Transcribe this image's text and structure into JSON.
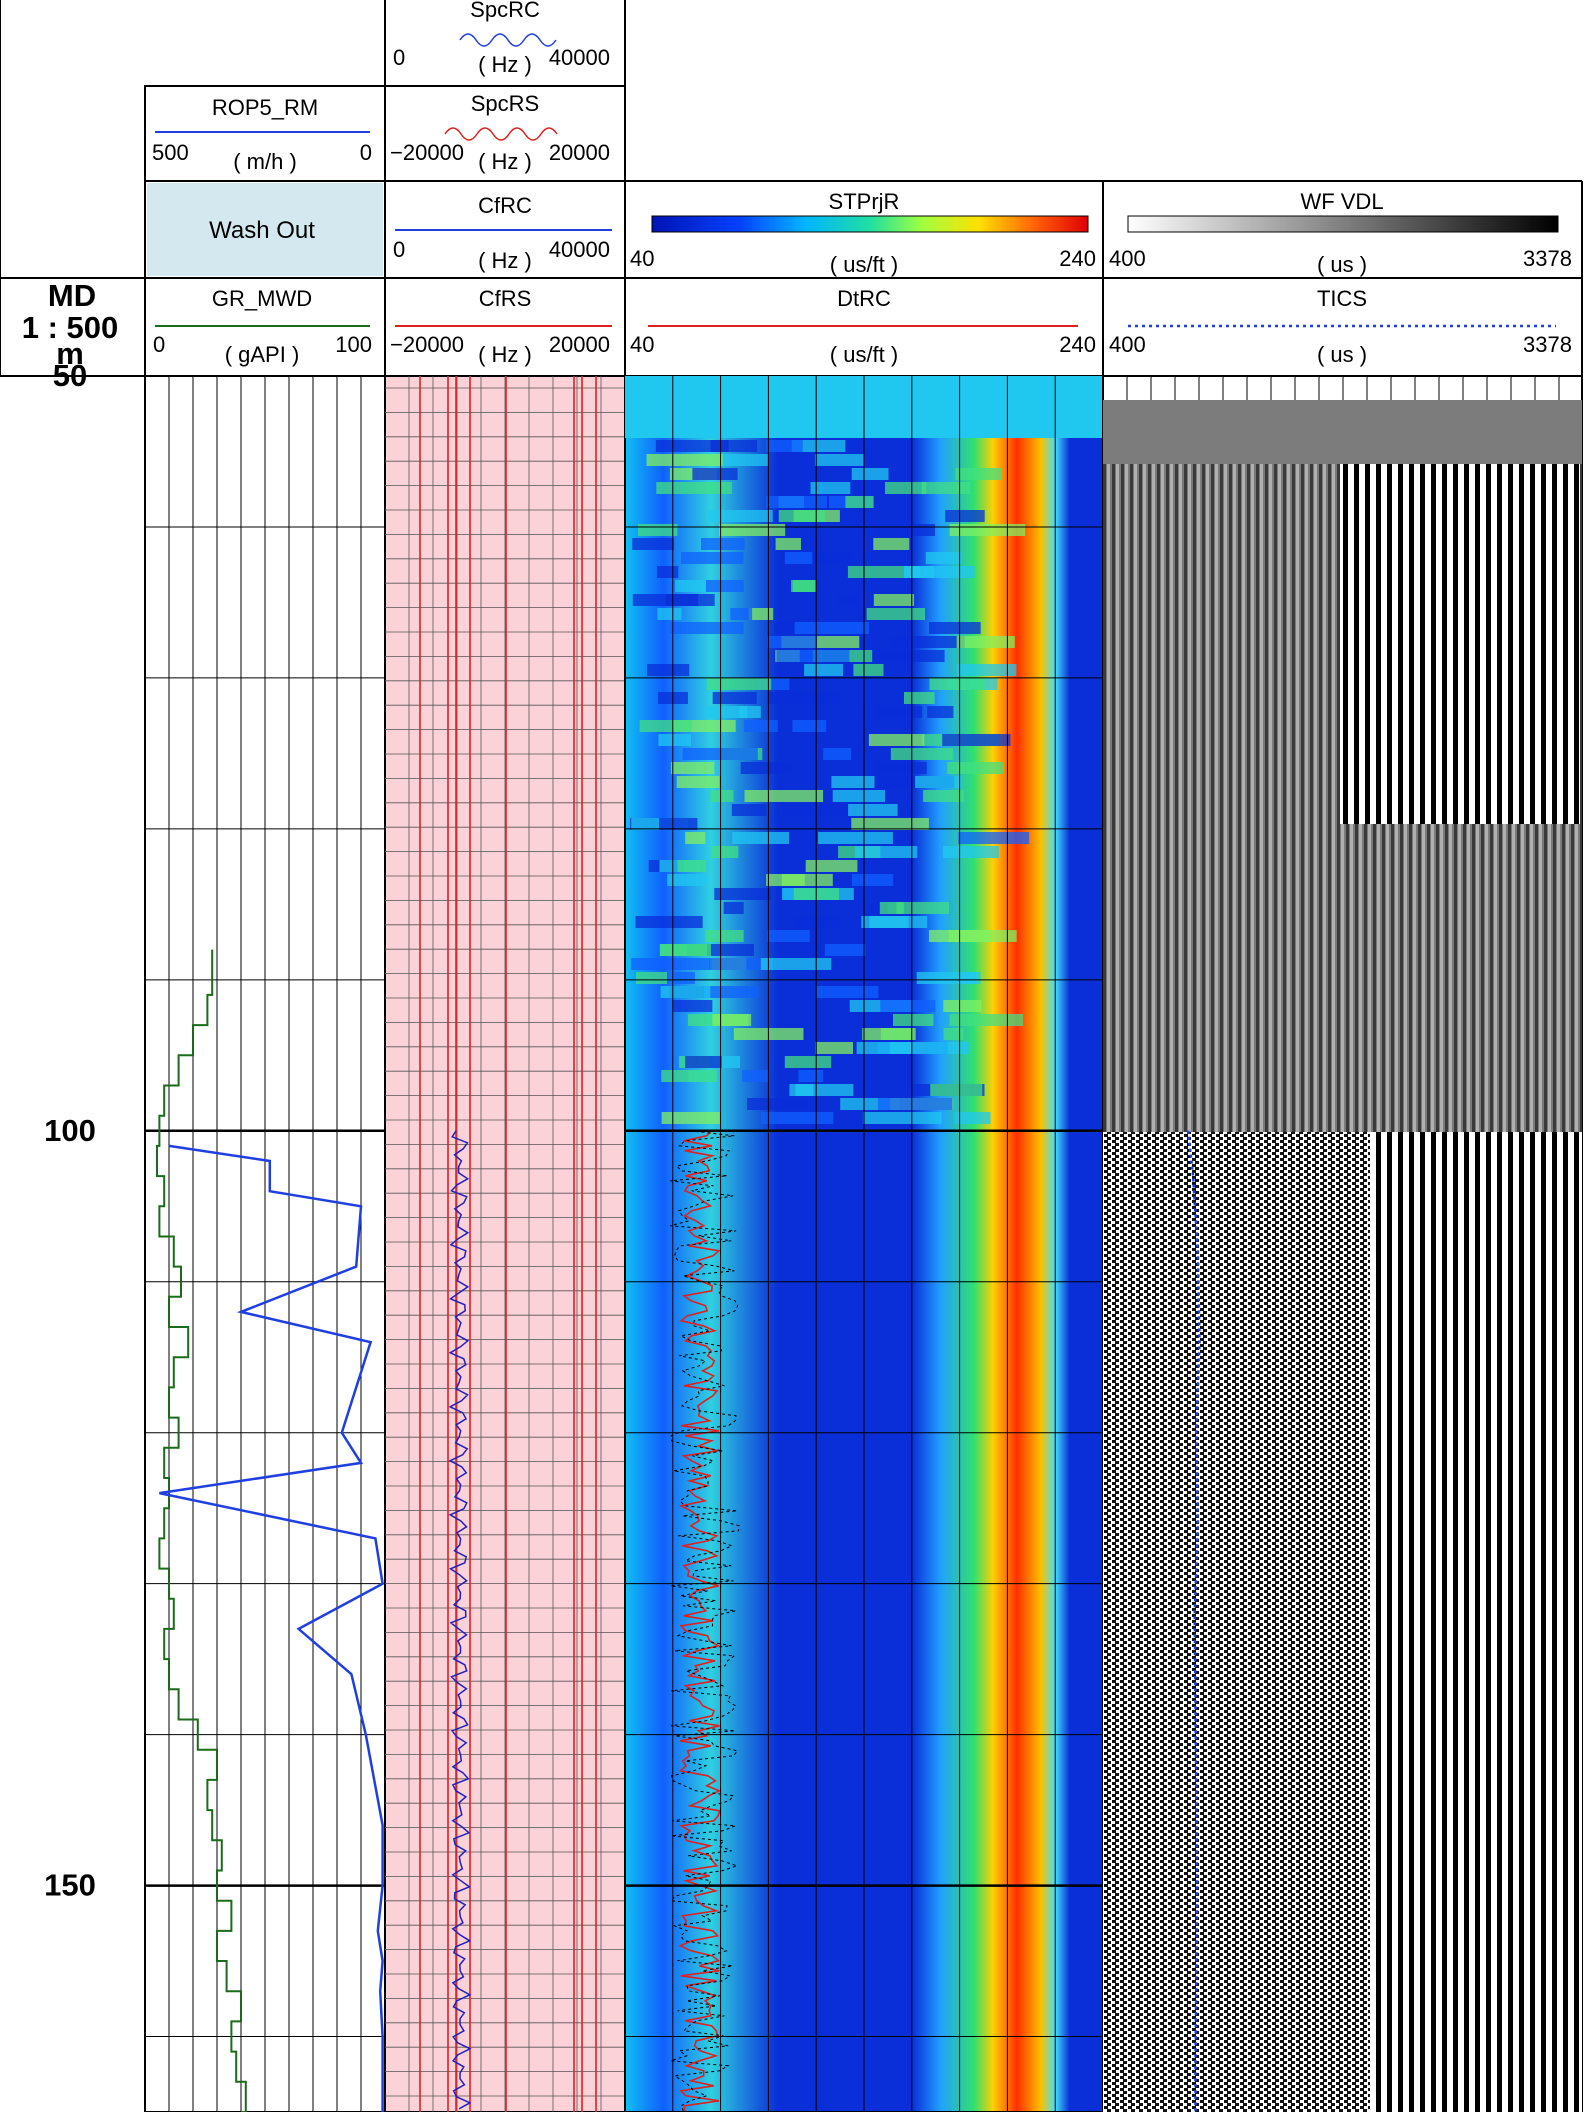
{
  "depth_track": {
    "title": "MD",
    "scale": "1 : 500",
    "unit": "m",
    "labels": [
      "50",
      "100",
      "150"
    ],
    "range": [
      50,
      165
    ]
  },
  "headers": {
    "spcrc": {
      "name": "SpcRC",
      "min": "0",
      "max": "40000",
      "unit": "( Hz )",
      "color": "#1f3fe0"
    },
    "rop": {
      "name": "ROP5_RM",
      "min": "500",
      "max": "0",
      "unit": "( m/h )",
      "color": "#1f3fe0"
    },
    "spcrs": {
      "name": "SpcRS",
      "min": "−20000",
      "max": "20000",
      "unit": "( Hz )",
      "color": "#e02020"
    },
    "washout": {
      "name": "Wash Out",
      "color": "#d4e8f0"
    },
    "cfrc": {
      "name": "CfRC",
      "min": "0",
      "max": "40000",
      "unit": "( Hz )",
      "color": "#1f3fe0"
    },
    "stprjr": {
      "name": "STPrjR",
      "min": "40",
      "max": "240",
      "unit": "( us/ft )"
    },
    "wfvdl": {
      "name": "WF VDL",
      "min": "400",
      "max": "3378",
      "unit": "( us )"
    },
    "gr": {
      "name": "GR_MWD",
      "min": "0",
      "max": "100",
      "unit": "( gAPI )",
      "color": "#1a6b1a"
    },
    "cfrs": {
      "name": "CfRS",
      "min": "−20000",
      "max": "20000",
      "unit": "( Hz )",
      "color": "#e02020"
    },
    "dtrc": {
      "name": "DtRC",
      "min": "40",
      "max": "240",
      "unit": "( us/ft )",
      "color": "#e02020"
    },
    "tics": {
      "name": "TICS",
      "min": "400",
      "max": "3378",
      "unit": "( us )",
      "color": "#1f3fe0"
    }
  },
  "chart_data": [
    {
      "type": "line",
      "title": "GR_MWD",
      "xlim": [
        0,
        100
      ],
      "depth": [
        88,
        90,
        91,
        93,
        95,
        97,
        99,
        101,
        103,
        105,
        107,
        109,
        111,
        113,
        115,
        117,
        119,
        121,
        123,
        125,
        127,
        129,
        131,
        133,
        135,
        137,
        139,
        141,
        143,
        145,
        147,
        149,
        151,
        153,
        155,
        157,
        159,
        161,
        163,
        165
      ],
      "values": [
        28,
        28,
        26,
        20,
        14,
        8,
        6,
        5,
        8,
        6,
        12,
        15,
        10,
        18,
        12,
        10,
        14,
        8,
        10,
        8,
        6,
        10,
        12,
        8,
        10,
        14,
        22,
        30,
        26,
        28,
        32,
        30,
        36,
        30,
        34,
        40,
        36,
        38,
        42,
        40
      ]
    },
    {
      "type": "line",
      "title": "ROP5_RM",
      "xlim": [
        500,
        0
      ],
      "depth": [
        101,
        102,
        104,
        105,
        109,
        112,
        114,
        118,
        120,
        122,
        124,
        127,
        130,
        133,
        136,
        140,
        146,
        150,
        153,
        155,
        157,
        160,
        165
      ],
      "values": [
        450,
        240,
        240,
        50,
        60,
        300,
        30,
        70,
        90,
        50,
        470,
        20,
        5,
        180,
        70,
        40,
        5,
        5,
        15,
        5,
        10,
        5,
        5
      ]
    },
    {
      "type": "line",
      "title": "TICS",
      "xlim": [
        400,
        3378
      ],
      "depth": [
        100,
        103,
        108,
        114,
        120,
        126,
        132,
        138,
        144,
        150,
        156,
        162,
        165
      ],
      "values": [
        930,
        960,
        990,
        1000,
        980,
        990,
        970,
        975,
        980,
        985,
        980,
        975,
        975
      ]
    }
  ]
}
